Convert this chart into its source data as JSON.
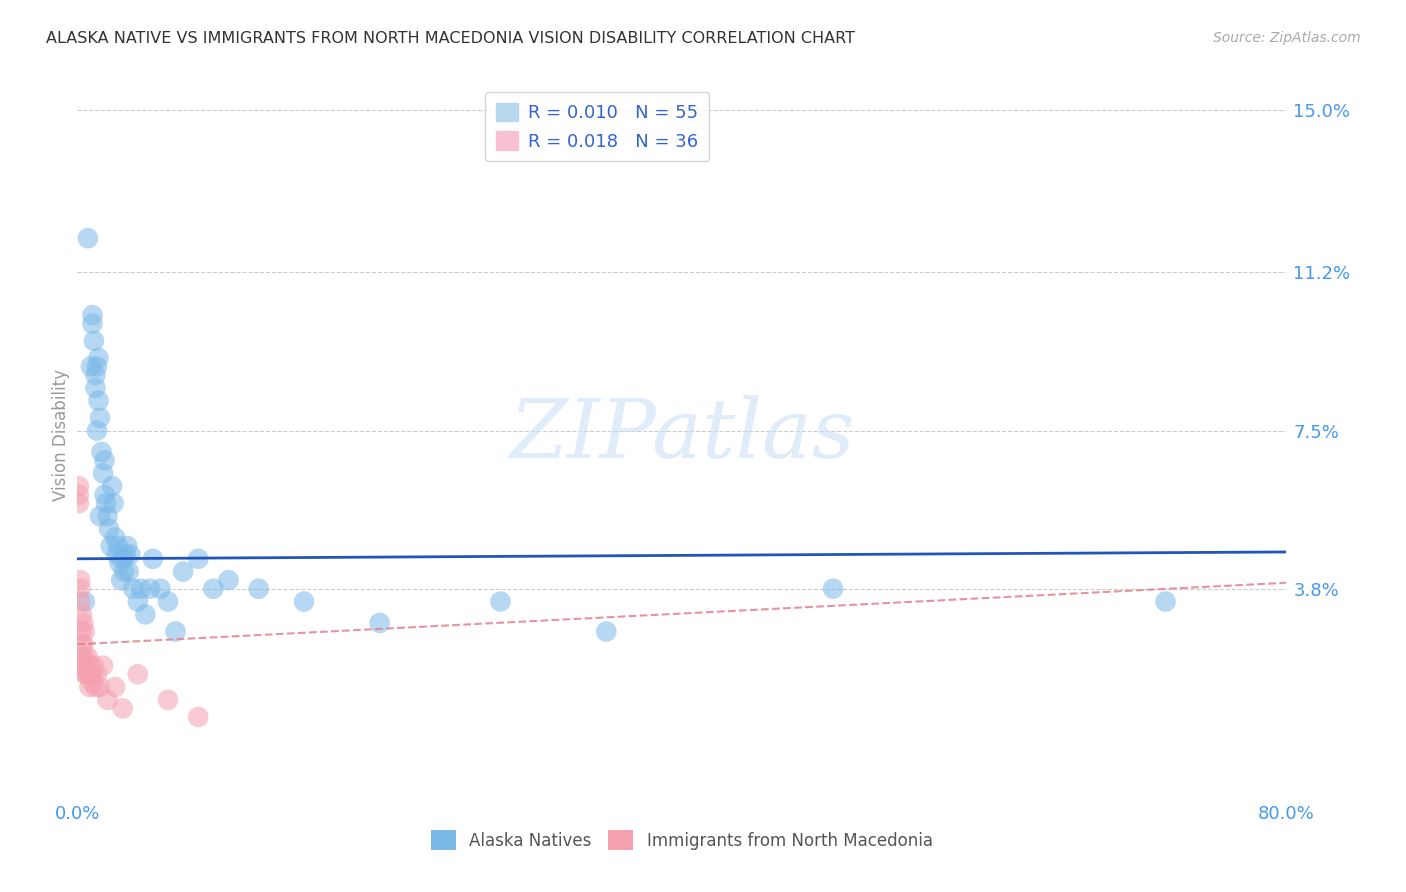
{
  "title": "ALASKA NATIVE VS IMMIGRANTS FROM NORTH MACEDONIA VISION DISABILITY CORRELATION CHART",
  "source": "Source: ZipAtlas.com",
  "ylabel": "Vision Disability",
  "xlim": [
    0.0,
    0.8
  ],
  "ylim": [
    -0.01,
    0.158
  ],
  "yticks": [
    0.038,
    0.075,
    0.112,
    0.15
  ],
  "ytick_labels": [
    "3.8%",
    "7.5%",
    "11.2%",
    "15.0%"
  ],
  "xticks": [
    0.0,
    0.1,
    0.2,
    0.3,
    0.4,
    0.5,
    0.6,
    0.7,
    0.8
  ],
  "xtick_labels": [
    "0.0%",
    "",
    "",
    "",
    "",
    "",
    "",
    "",
    "80.0%"
  ],
  "series1_name": "Alaska Natives",
  "series2_name": "Immigrants from North Macedonia",
  "series1_color": "#7ab8e8",
  "series2_color": "#f4a0b0",
  "trend1_color": "#2255bb",
  "trend2_color": "#e08090",
  "background_color": "#ffffff",
  "grid_color": "#cccccc",
  "title_color": "#333333",
  "axis_label_color": "#4499ee",
  "watermark": "ZIPatlas",
  "alaska_x": [
    0.005,
    0.007,
    0.009,
    0.01,
    0.01,
    0.011,
    0.012,
    0.012,
    0.013,
    0.013,
    0.014,
    0.014,
    0.015,
    0.015,
    0.016,
    0.017,
    0.018,
    0.018,
    0.019,
    0.02,
    0.021,
    0.022,
    0.023,
    0.024,
    0.025,
    0.026,
    0.027,
    0.028,
    0.029,
    0.03,
    0.031,
    0.032,
    0.033,
    0.034,
    0.035,
    0.037,
    0.04,
    0.042,
    0.045,
    0.048,
    0.05,
    0.055,
    0.06,
    0.065,
    0.07,
    0.08,
    0.09,
    0.1,
    0.12,
    0.15,
    0.2,
    0.28,
    0.35,
    0.5,
    0.72
  ],
  "alaska_y": [
    0.035,
    0.12,
    0.09,
    0.1,
    0.102,
    0.096,
    0.088,
    0.085,
    0.09,
    0.075,
    0.092,
    0.082,
    0.078,
    0.055,
    0.07,
    0.065,
    0.06,
    0.068,
    0.058,
    0.055,
    0.052,
    0.048,
    0.062,
    0.058,
    0.05,
    0.046,
    0.048,
    0.044,
    0.04,
    0.045,
    0.042,
    0.046,
    0.048,
    0.042,
    0.046,
    0.038,
    0.035,
    0.038,
    0.032,
    0.038,
    0.045,
    0.038,
    0.035,
    0.028,
    0.042,
    0.045,
    0.038,
    0.04,
    0.038,
    0.035,
    0.03,
    0.035,
    0.028,
    0.038,
    0.035
  ],
  "macedonia_x": [
    0.001,
    0.001,
    0.001,
    0.002,
    0.002,
    0.002,
    0.003,
    0.003,
    0.003,
    0.003,
    0.004,
    0.004,
    0.004,
    0.005,
    0.005,
    0.005,
    0.006,
    0.006,
    0.007,
    0.007,
    0.008,
    0.008,
    0.009,
    0.01,
    0.01,
    0.011,
    0.012,
    0.013,
    0.015,
    0.017,
    0.02,
    0.025,
    0.03,
    0.04,
    0.06,
    0.08
  ],
  "macedonia_y": [
    0.06,
    0.062,
    0.058,
    0.038,
    0.04,
    0.035,
    0.032,
    0.028,
    0.025,
    0.022,
    0.03,
    0.025,
    0.02,
    0.028,
    0.022,
    0.018,
    0.02,
    0.018,
    0.022,
    0.018,
    0.02,
    0.015,
    0.018,
    0.016,
    0.018,
    0.02,
    0.015,
    0.018,
    0.015,
    0.02,
    0.012,
    0.015,
    0.01,
    0.018,
    0.012,
    0.008
  ],
  "trend1_intercept": 0.045,
  "trend1_slope": 0.002,
  "trend2_intercept": 0.025,
  "trend2_slope": 0.018
}
